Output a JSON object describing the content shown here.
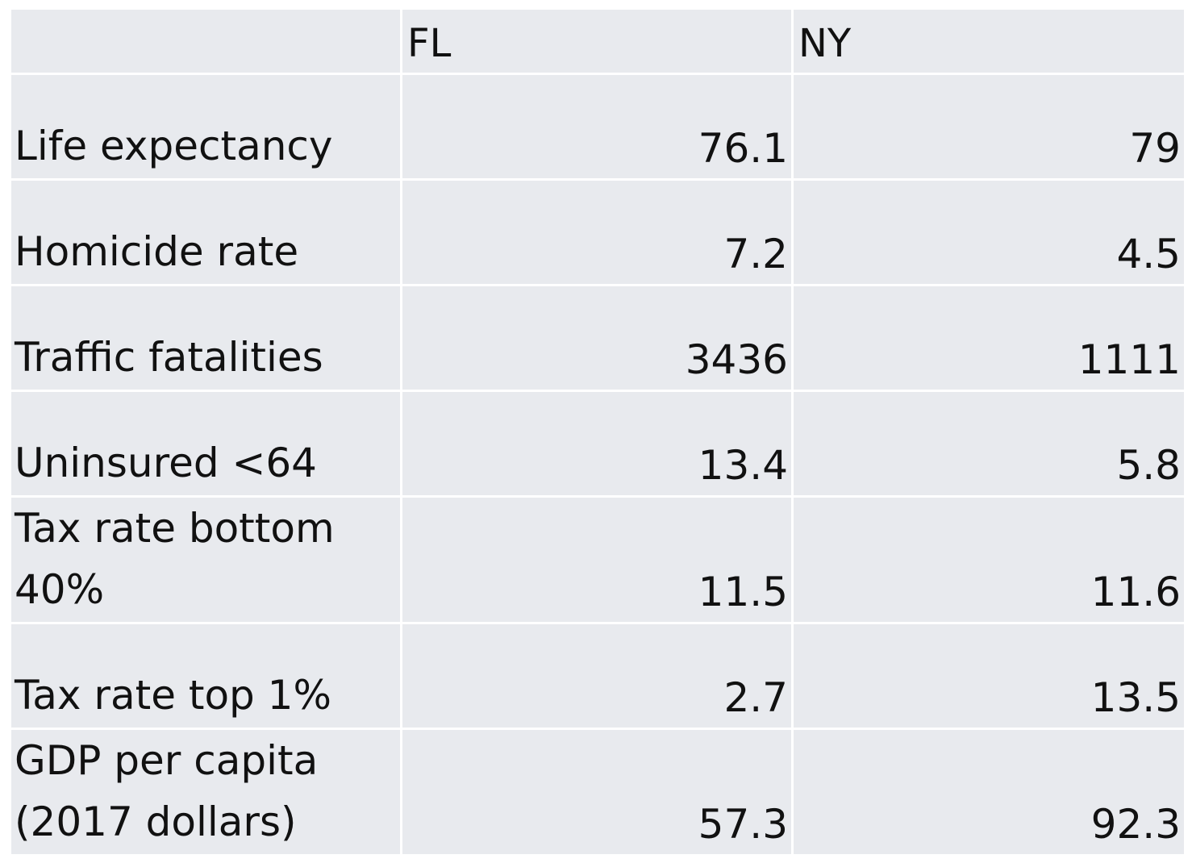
{
  "table": {
    "headers": [
      "",
      "FL",
      "NY"
    ],
    "rows": [
      {
        "label": "Life expectancy",
        "fl": "76.1",
        "ny": "79"
      },
      {
        "label": "Homicide rate",
        "fl": "7.2",
        "ny": "4.5"
      },
      {
        "label": "Traffic fatalities",
        "fl": "3436",
        "ny": "1111"
      },
      {
        "label": "Uninsured <64",
        "fl": "13.4",
        "ny": "5.8"
      },
      {
        "label": "Tax rate bottom\n40%",
        "fl": "11.5",
        "ny": "11.6"
      },
      {
        "label": "Tax rate top 1%",
        "fl": "2.7",
        "ny": "13.5"
      },
      {
        "label": "GDP per capita\n(2017 dollars)",
        "fl": "57.3",
        "ny": "92.3"
      }
    ]
  }
}
